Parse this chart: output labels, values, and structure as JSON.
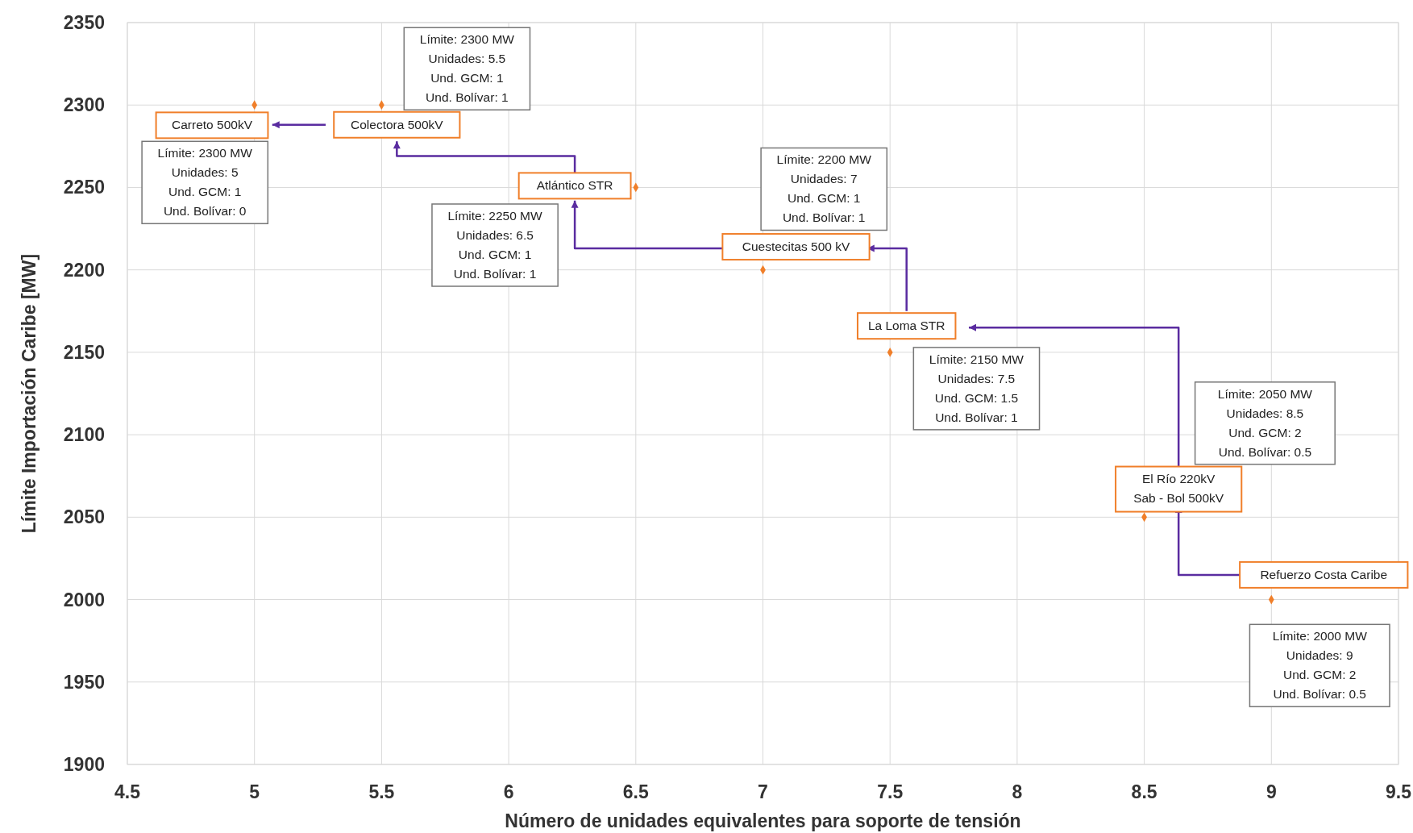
{
  "chart_data": {
    "type": "scatter",
    "xlabel": "Número de unidades equivalentes para soporte de tensión",
    "ylabel": "Límite Importación Caribe [MW]",
    "x": [
      5,
      5.5,
      6.5,
      7,
      7.5,
      8.5,
      9
    ],
    "values": [
      2300,
      2300,
      2250,
      2200,
      2150,
      2050,
      2000
    ],
    "color": "#f07f2a",
    "marker": "diamond",
    "grid": true,
    "xlim": [
      4.5,
      9.5
    ],
    "xticks": [
      4.5,
      5,
      5.5,
      6,
      6.5,
      7,
      7.5,
      8,
      8.5,
      9,
      9.5
    ],
    "ylim": [
      1900,
      2350
    ],
    "yticks": [
      1900,
      1950,
      2000,
      2050,
      2100,
      2150,
      2200,
      2250,
      2300,
      2350
    ],
    "annotations": [
      "Carreto 500kV",
      "Colectora 500kV",
      "Atlántico STR",
      "Cuestecitas 500 kV",
      "La Loma STR",
      "El Río 220kV\nSab - Bol 500kV",
      "Refuerzo Costa Caribe",
      "Límite: 2300 MW\nUnidades: 5\nUnd. GCM: 1\nUnd. Bolívar: 0",
      "Límite: 2300 MW\nUnidades: 5.5\nUnd. GCM: 1\nUnd. Bolívar: 1",
      "Límite: 2250 MW\nUnidades: 6.5\nUnd. GCM: 1\nUnd. Bolívar: 1",
      "Límite: 2200 MW\nUnidades: 7\nUnd. GCM: 1\nUnd. Bolívar: 1",
      "Límite: 2150 MW\nUnidades: 7.5\nUnd. GCM: 1.5\nUnd. Bolívar: 1",
      "Límite: 2050 MW\nUnidades: 8.5\nUnd. GCM: 2\nUnd. Bolívar: 0.5",
      "Límite: 2000 MW\nUnidades: 9\nUnd. GCM: 2\nUnd. Bolívar: 0.5"
    ]
  }
}
